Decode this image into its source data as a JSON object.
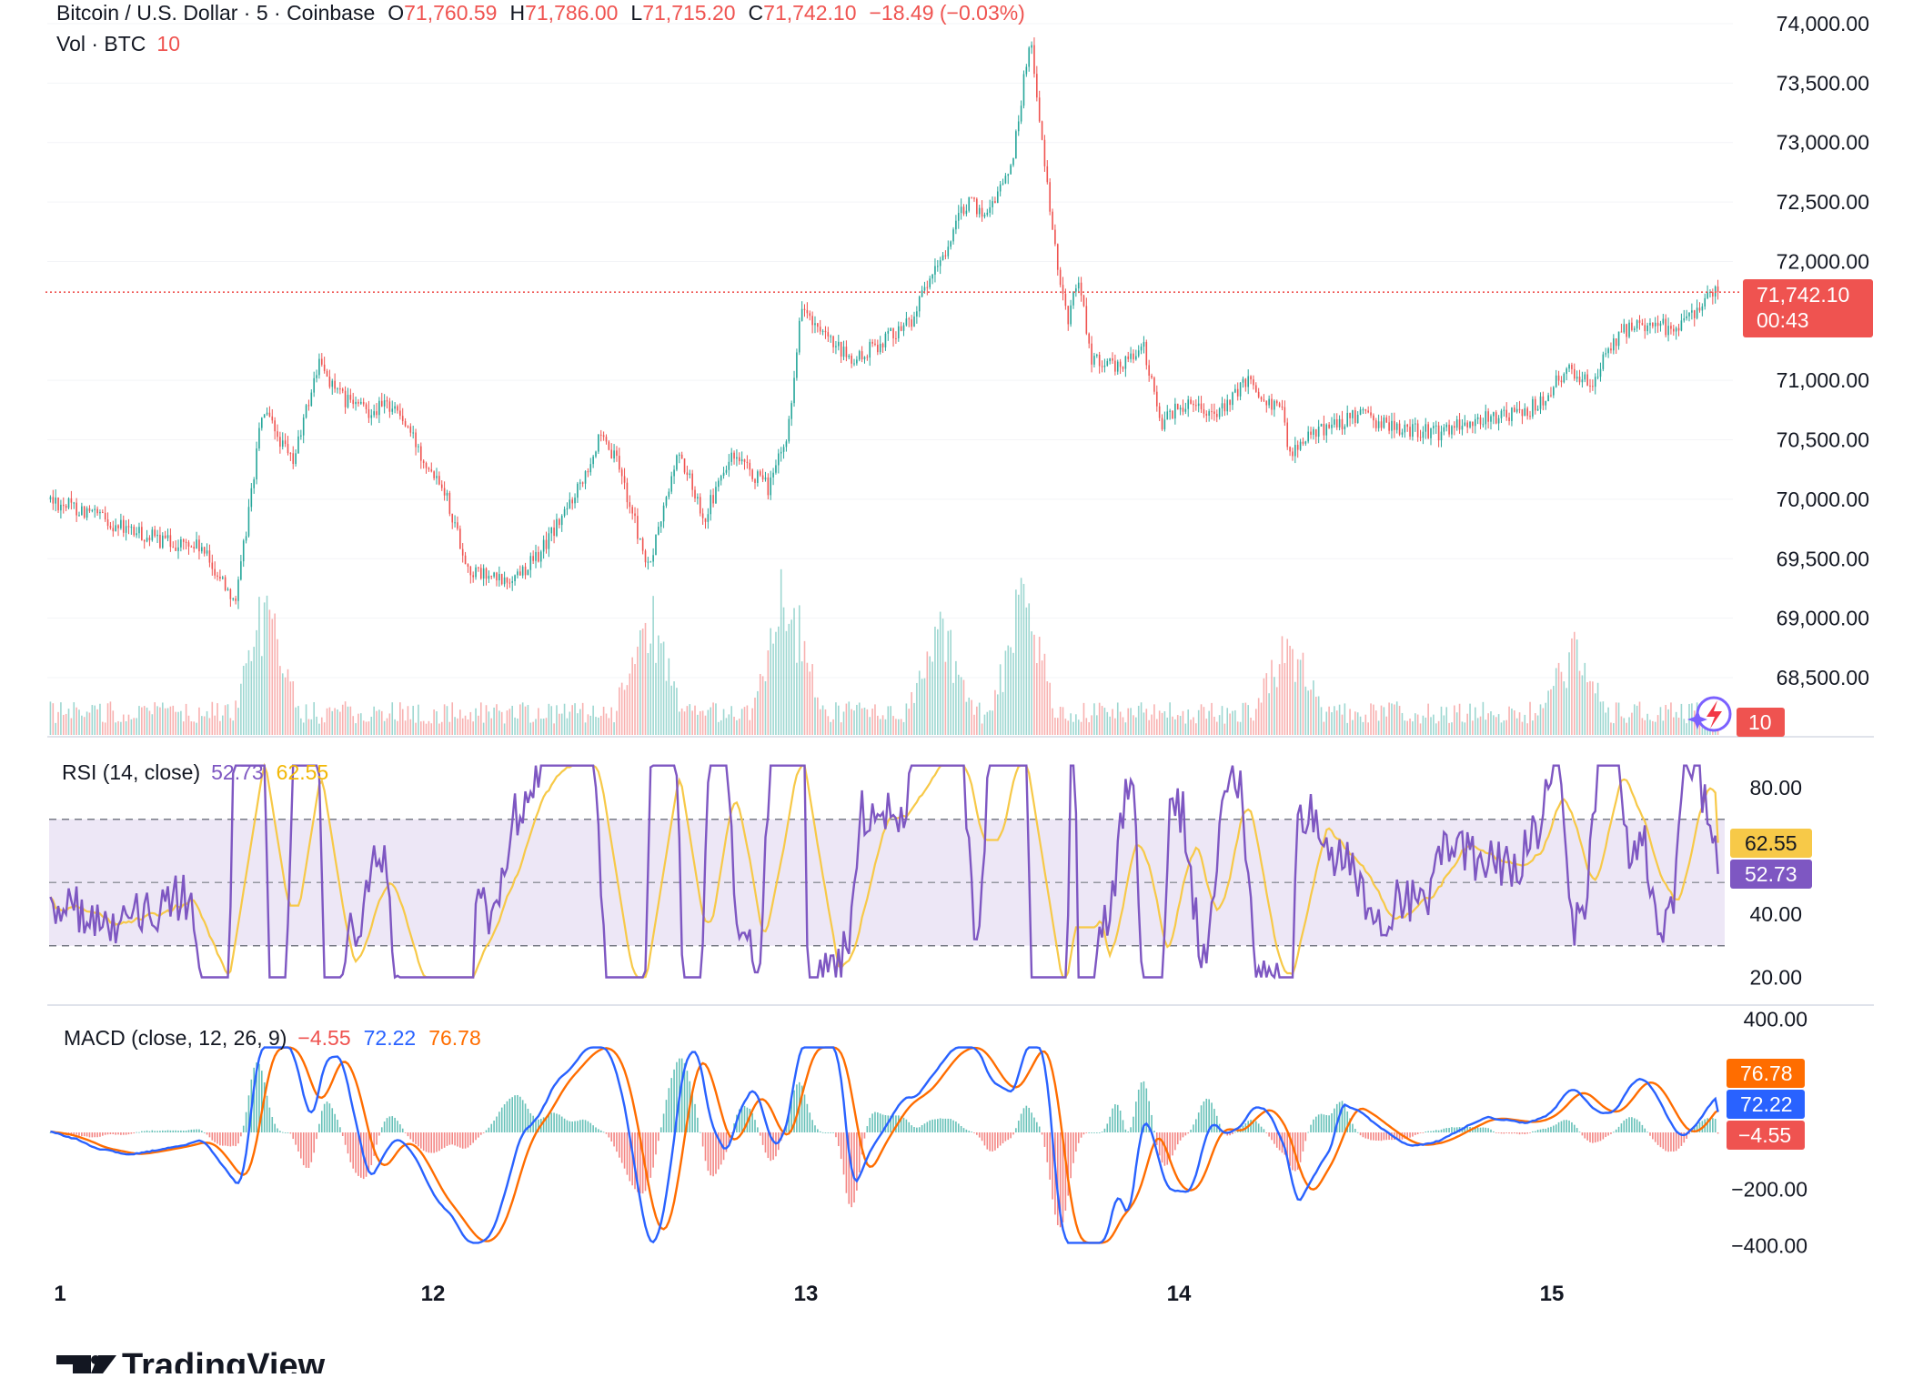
{
  "header": {
    "symbol": "Bitcoin / U.S. Dollar · 5 · Coinbase",
    "open_label": "O",
    "open_value": "71,760.59",
    "high_label": "H",
    "high_value": "71,786.00",
    "low_label": "L",
    "low_value": "71,715.20",
    "close_label": "C",
    "close_value": "71,742.10",
    "change": "−18.49 (−0.03%)",
    "volume_label": "Vol · BTC",
    "volume_value": "10"
  },
  "price_tag": {
    "price": "71,742.10",
    "countdown": "00:43"
  },
  "volume_tag": "10",
  "rsi_panel": {
    "label": "RSI (14, close)",
    "rsi_value": "52.73",
    "ma_value": "62.55"
  },
  "macd_panel": {
    "label": "MACD (close, 12, 26, 9)",
    "hist_value": "−4.55",
    "macd_value": "72.22",
    "signal_value": "76.78"
  },
  "brand": {
    "name": "TradingView"
  },
  "colors": {
    "up": "#26a69a",
    "down": "#ef5350",
    "rsi_line": "#7e57c2",
    "rsi_ma": "#f7c948",
    "macd_line": "#2962ff",
    "signal_line": "#ff6d00",
    "band_fill": "#ede7f6",
    "grid": "#f0f3fa",
    "text": "#131722",
    "price_line": "#ef5350"
  },
  "chart_data": [
    {
      "type": "candlestick",
      "title": "Bitcoin / U.S. Dollar · 5 · Coinbase",
      "ylim": [
        68200,
        74200
      ],
      "yticks": [
        {
          "value": 74000,
          "label": "74,000.00"
        },
        {
          "value": 73500,
          "label": "73,500.00"
        },
        {
          "value": 73000,
          "label": "73,000.00"
        },
        {
          "value": 72500,
          "label": "72,500.00"
        },
        {
          "value": 72000,
          "label": "72,000.00"
        },
        {
          "value": 71000,
          "label": "71,000.00"
        },
        {
          "value": 70500,
          "label": "70,500.00"
        },
        {
          "value": 70000,
          "label": "70,000.00"
        },
        {
          "value": 69500,
          "label": "69,500.00"
        },
        {
          "value": 69000,
          "label": "69,000.00"
        },
        {
          "value": 68500,
          "label": "68,500.00"
        }
      ],
      "xticks": [
        {
          "day": 11,
          "label": "1"
        },
        {
          "day": 12,
          "label": "12"
        },
        {
          "day": 13,
          "label": "13"
        },
        {
          "day": 14,
          "label": "14"
        },
        {
          "day": 15,
          "label": "15"
        }
      ],
      "xlim_days": [
        11.0,
        15.46
      ],
      "last_price": 71742.1,
      "close_path": [
        [
          11.0,
          70000
        ],
        [
          11.1,
          69900
        ],
        [
          11.2,
          69750
        ],
        [
          11.3,
          69650
        ],
        [
          11.4,
          69600
        ],
        [
          11.5,
          69150
        ],
        [
          11.57,
          70750
        ],
        [
          11.65,
          70300
        ],
        [
          11.72,
          71150
        ],
        [
          11.78,
          70850
        ],
        [
          11.85,
          70750
        ],
        [
          11.92,
          70800
        ],
        [
          12.0,
          70350
        ],
        [
          12.05,
          70150
        ],
        [
          12.12,
          69400
        ],
        [
          12.22,
          69300
        ],
        [
          12.3,
          69500
        ],
        [
          12.38,
          69900
        ],
        [
          12.47,
          70500
        ],
        [
          12.52,
          70300
        ],
        [
          12.6,
          69400
        ],
        [
          12.68,
          70400
        ],
        [
          12.75,
          69850
        ],
        [
          12.82,
          70350
        ],
        [
          12.92,
          70100
        ],
        [
          12.97,
          70500
        ],
        [
          13.01,
          71650
        ],
        [
          13.05,
          71400
        ],
        [
          13.15,
          71150
        ],
        [
          13.25,
          71400
        ],
        [
          13.3,
          71500
        ],
        [
          13.38,
          72000
        ],
        [
          13.45,
          72500
        ],
        [
          13.5,
          72400
        ],
        [
          13.57,
          72800
        ],
        [
          13.62,
          73900
        ],
        [
          13.68,
          72200
        ],
        [
          13.72,
          71500
        ],
        [
          13.75,
          71900
        ],
        [
          13.78,
          71200
        ],
        [
          13.85,
          71100
        ],
        [
          13.92,
          71300
        ],
        [
          13.97,
          70650
        ],
        [
          14.05,
          70850
        ],
        [
          14.12,
          70700
        ],
        [
          14.2,
          71000
        ],
        [
          14.3,
          70700
        ],
        [
          14.31,
          70400
        ],
        [
          14.4,
          70600
        ],
        [
          14.5,
          70700
        ],
        [
          14.6,
          70600
        ],
        [
          14.7,
          70550
        ],
        [
          14.8,
          70650
        ],
        [
          14.95,
          70750
        ],
        [
          15.0,
          70850
        ],
        [
          15.05,
          71100
        ],
        [
          15.12,
          71000
        ],
        [
          15.2,
          71400
        ],
        [
          15.28,
          71500
        ],
        [
          15.35,
          71400
        ],
        [
          15.42,
          71700
        ],
        [
          15.455,
          71742
        ]
      ]
    },
    {
      "type": "bar",
      "title": "Vol · BTC",
      "last_value": 10,
      "peaks": [
        [
          11.58,
          0.75
        ],
        [
          12.6,
          0.75
        ],
        [
          12.97,
          1.0
        ],
        [
          13.38,
          0.6
        ],
        [
          13.6,
          0.85
        ],
        [
          14.31,
          0.55
        ],
        [
          15.07,
          0.5
        ]
      ]
    },
    {
      "type": "line",
      "title": "RSI (14, close)",
      "ylim": [
        15,
        92
      ],
      "yticks": [
        {
          "value": 80,
          "label": "80.00"
        },
        {
          "value": 40,
          "label": "40.00"
        },
        {
          "value": 20,
          "label": "20.00"
        }
      ],
      "bands": [
        70,
        50,
        30
      ],
      "series": [
        {
          "name": "RSI",
          "last": 52.73
        },
        {
          "name": "RSI-based MA",
          "last": 62.55
        }
      ]
    },
    {
      "type": "line",
      "title": "MACD (close, 12, 26, 9)",
      "ylim": [
        -440,
        430
      ],
      "yticks": [
        {
          "value": 400,
          "label": "400.00"
        },
        {
          "value": -200,
          "label": "−200.00"
        },
        {
          "value": -400,
          "label": "−400.00"
        }
      ],
      "series": [
        {
          "name": "Histogram",
          "last": -4.55
        },
        {
          "name": "MACD",
          "last": 72.22
        },
        {
          "name": "Signal",
          "last": 76.78
        }
      ]
    }
  ]
}
